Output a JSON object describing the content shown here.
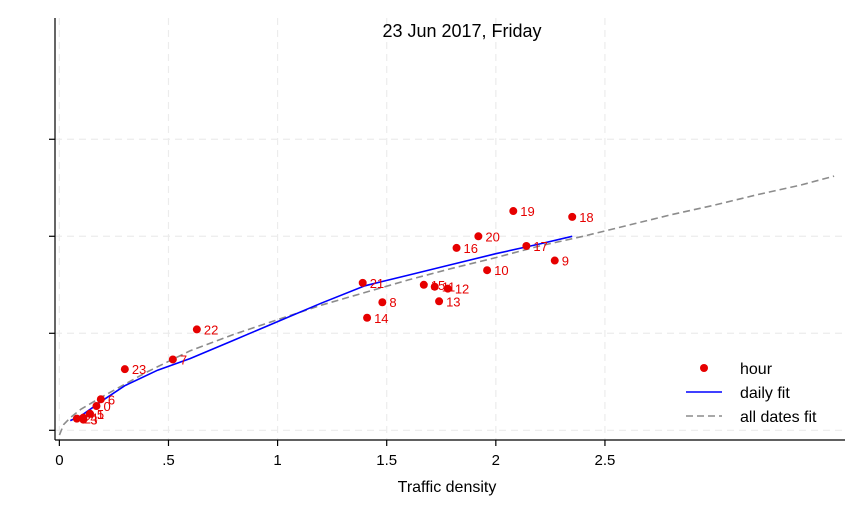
{
  "chart_data": {
    "type": "scatter",
    "title": "23 Jun 2017, Friday",
    "xlabel": "Traffic density",
    "ylabel": "",
    "xlim": [
      -0.02,
      3.6
    ],
    "ylim": [
      -0.1,
      4.25
    ],
    "grid": true,
    "x_ticks": [
      0,
      0.5,
      1,
      1.5,
      2,
      2.5
    ],
    "x_tick_labels": [
      "0",
      ".5",
      "1",
      "1.5",
      "2",
      "2.5"
    ],
    "y_ticks": [
      0,
      1,
      2,
      3
    ],
    "legend_position": "bottom-right",
    "colors": {
      "points": "#e60000",
      "daily_fit": "#0000ff",
      "all_dates_fit": "#8c8c8c"
    },
    "series": [
      {
        "name": "hour",
        "kind": "scatter",
        "points": [
          {
            "label": "0",
            "x": 0.17,
            "y": 0.25
          },
          {
            "label": "1",
            "x": 0.14,
            "y": 0.17
          },
          {
            "label": "2",
            "x": 0.08,
            "y": 0.12
          },
          {
            "label": "3",
            "x": 0.11,
            "y": 0.11
          },
          {
            "label": "4",
            "x": 0.11,
            "y": 0.13
          },
          {
            "label": "5",
            "x": 0.14,
            "y": 0.17
          },
          {
            "label": "6",
            "x": 0.19,
            "y": 0.32
          },
          {
            "label": "7",
            "x": 0.52,
            "y": 0.73
          },
          {
            "label": "8",
            "x": 1.48,
            "y": 1.32
          },
          {
            "label": "9",
            "x": 2.27,
            "y": 1.75
          },
          {
            "label": "10",
            "x": 1.96,
            "y": 1.65
          },
          {
            "label": "11",
            "x": 1.72,
            "y": 1.48
          },
          {
            "label": "12",
            "x": 1.78,
            "y": 1.46
          },
          {
            "label": "13",
            "x": 1.74,
            "y": 1.33
          },
          {
            "label": "14",
            "x": 1.41,
            "y": 1.16
          },
          {
            "label": "15",
            "x": 1.67,
            "y": 1.5
          },
          {
            "label": "16",
            "x": 1.82,
            "y": 1.88
          },
          {
            "label": "17",
            "x": 2.14,
            "y": 1.9
          },
          {
            "label": "18",
            "x": 2.35,
            "y": 2.2
          },
          {
            "label": "19",
            "x": 2.08,
            "y": 2.26
          },
          {
            "label": "20",
            "x": 1.92,
            "y": 2.0
          },
          {
            "label": "21",
            "x": 1.39,
            "y": 1.52
          },
          {
            "label": "22",
            "x": 0.63,
            "y": 1.04
          },
          {
            "label": "23",
            "x": 0.3,
            "y": 0.63
          }
        ]
      },
      {
        "name": "daily fit",
        "kind": "line",
        "x": [
          0.05,
          0.1,
          0.2,
          0.3,
          0.45,
          0.6,
          0.8,
          1.0,
          1.2,
          1.4,
          1.6,
          1.8,
          2.0,
          2.2,
          2.35
        ],
        "y": [
          0.1,
          0.15,
          0.31,
          0.46,
          0.62,
          0.74,
          0.93,
          1.12,
          1.31,
          1.49,
          1.6,
          1.71,
          1.82,
          1.92,
          2.0
        ]
      },
      {
        "name": "all dates fit",
        "kind": "line",
        "x": [
          0.0,
          0.02,
          0.05,
          0.1,
          0.2,
          0.4,
          0.6,
          0.8,
          1.0,
          1.2,
          1.4,
          1.6,
          1.8,
          2.0,
          2.2,
          2.4,
          2.6,
          2.8,
          3.0,
          3.2,
          3.4,
          3.55
        ],
        "y": [
          -0.05,
          0.06,
          0.13,
          0.22,
          0.35,
          0.6,
          0.82,
          0.99,
          1.14,
          1.29,
          1.42,
          1.55,
          1.67,
          1.78,
          1.9,
          2.0,
          2.11,
          2.22,
          2.32,
          2.43,
          2.53,
          2.62
        ]
      }
    ]
  }
}
